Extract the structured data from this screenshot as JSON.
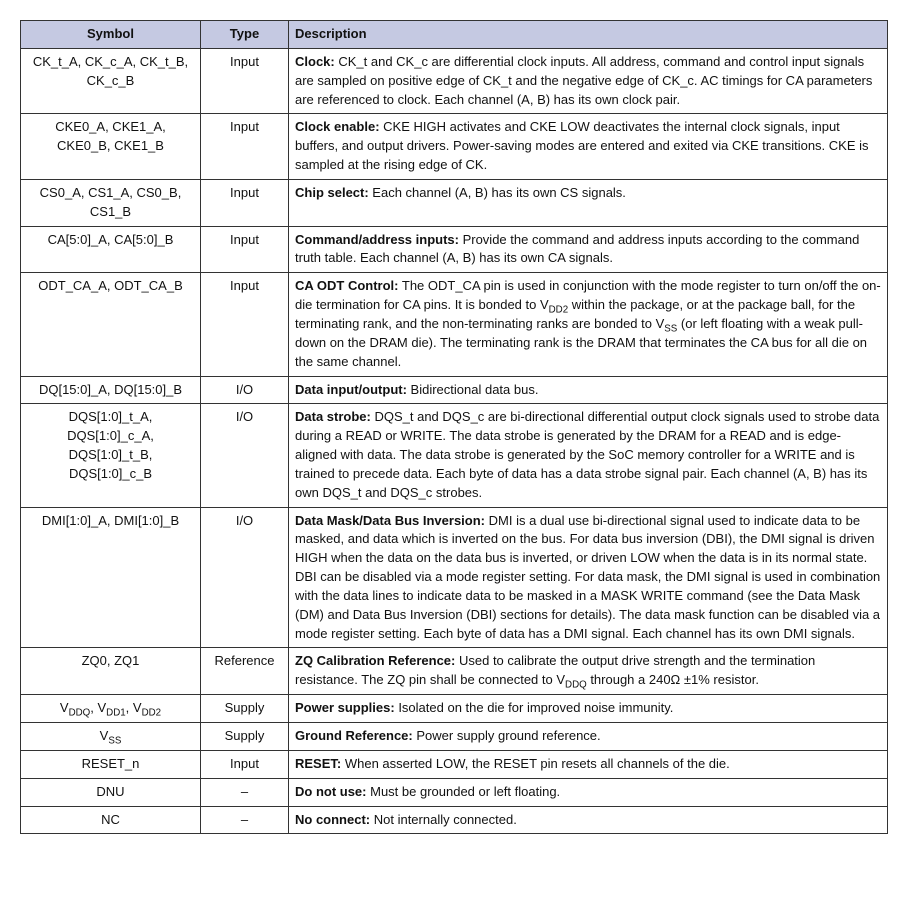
{
  "table": {
    "header_bg": "#c5c9e2",
    "columns": [
      {
        "key": "symbol",
        "label": "Symbol",
        "width": 180,
        "align_header": "center"
      },
      {
        "key": "type",
        "label": "Type",
        "width": 88,
        "align_header": "center"
      },
      {
        "key": "description",
        "label": "Description",
        "align_header": "left"
      }
    ],
    "rows": [
      {
        "symbol_html": "CK_t_A, CK_c_A, CK_t_B, CK_c_B",
        "type": "Input",
        "desc_bold": "Clock:",
        "desc_rest_html": " CK_t and CK_c are differential clock inputs. All address, command and control input signals are sampled on positive edge of CK_t and the negative edge of CK_c. AC timings for CA parameters are referenced to clock. Each channel (A, B) has its own clock pair."
      },
      {
        "symbol_html": "CKE0_A, CKE1_A, CKE0_B, CKE1_B",
        "type": "Input",
        "desc_bold": "Clock enable:",
        "desc_rest_html": " CKE HIGH activates and CKE LOW deactivates the internal clock signals, input buffers, and output drivers. Power-saving modes are entered and exited via CKE transitions. CKE is sampled at the rising edge of CK."
      },
      {
        "symbol_html": "CS0_A, CS1_A, CS0_B, CS1_B",
        "type": "Input",
        "desc_bold": "Chip select:",
        "desc_rest_html": " Each channel (A, B) has its own CS signals."
      },
      {
        "symbol_html": "CA[5:0]_A, CA[5:0]_B",
        "type": "Input",
        "desc_bold": "Command/address inputs:",
        "desc_rest_html": " Provide the command and address inputs according to the command truth table. Each channel (A, B) has its own CA signals."
      },
      {
        "symbol_html": "ODT_CA_A, ODT_CA_B",
        "type": "Input",
        "desc_bold": "CA ODT Control:",
        "desc_rest_html": " The ODT_CA pin is used in conjunction with the mode register to turn on/off the on-die termination for CA pins. It is bonded to V<sub>DD2</sub> within the package, or at the package ball, for the terminating rank, and the non-terminating ranks are bonded to V<sub>SS</sub> (or left floating with a weak pull-down on the DRAM die). The terminating rank is the DRAM that terminates the CA bus for all die on the same channel."
      },
      {
        "symbol_html": "DQ[15:0]_A, DQ[15:0]_B",
        "type": "I/O",
        "desc_bold": "Data input/output:",
        "desc_rest_html": " Bidirectional data bus."
      },
      {
        "symbol_html": "DQS[1:0]_t_A, DQS[1:0]_c_A, DQS[1:0]_t_B, DQS[1:0]_c_B",
        "type": "I/O",
        "desc_bold": "Data strobe:",
        "desc_rest_html": " DQS_t and DQS_c are bi-directional differential output clock signals used to strobe data during a READ or WRITE. The data strobe is generated by the DRAM for a READ and is edge-aligned with data. The data strobe is generated by the SoC memory controller for a WRITE and is trained to precede data. Each byte of data has a data strobe signal pair. Each channel (A, B) has its own DQS_t and DQS_c strobes."
      },
      {
        "symbol_html": "DMI[1:0]_A, DMI[1:0]_B",
        "type": "I/O",
        "desc_bold": "Data Mask/Data Bus Inversion:",
        "desc_rest_html": " DMI is a dual use bi-directional signal used to indicate data to be masked, and data which is inverted on the bus. For data bus inversion (DBI), the DMI signal is driven HIGH when the data on the data bus is inverted, or driven LOW when the data is in its normal state. DBI can be disabled via a mode register setting. For data mask, the DMI signal is used in combination with the data lines to indicate data to be masked in a MASK WRITE command (see the Data Mask (DM) and Data Bus Inversion (DBI) sections for details). The data mask function can be disabled via a mode register setting. Each byte of data has a DMI signal. Each channel has its own DMI signals."
      },
      {
        "symbol_html": "ZQ0, ZQ1",
        "type": "Reference",
        "desc_bold": "ZQ Calibration Reference:",
        "desc_rest_html": " Used to calibrate the output drive strength and the termination resistance. The ZQ pin shall be connected to V<sub>DDQ</sub> through a 240Ω ±1% resistor."
      },
      {
        "symbol_html": "V<sub>DDQ</sub>, V<sub>DD1</sub>, V<sub>DD2</sub>",
        "type": "Supply",
        "desc_bold": "Power supplies:",
        "desc_rest_html": " Isolated on the die for improved noise immunity."
      },
      {
        "symbol_html": "V<sub>SS</sub>",
        "type": "Supply",
        "desc_bold": "Ground Reference:",
        "desc_rest_html": " Power supply ground reference."
      },
      {
        "symbol_html": "RESET_n",
        "type": "Input",
        "desc_bold": "RESET:",
        "desc_rest_html": " When asserted LOW, the RESET pin resets all channels of the die."
      },
      {
        "symbol_html": "DNU",
        "type": "–",
        "desc_bold": "Do not use:",
        "desc_rest_html": " Must be grounded or left floating."
      },
      {
        "symbol_html": "NC",
        "type": "–",
        "desc_bold": "No connect:",
        "desc_rest_html": " Not internally connected."
      }
    ]
  }
}
